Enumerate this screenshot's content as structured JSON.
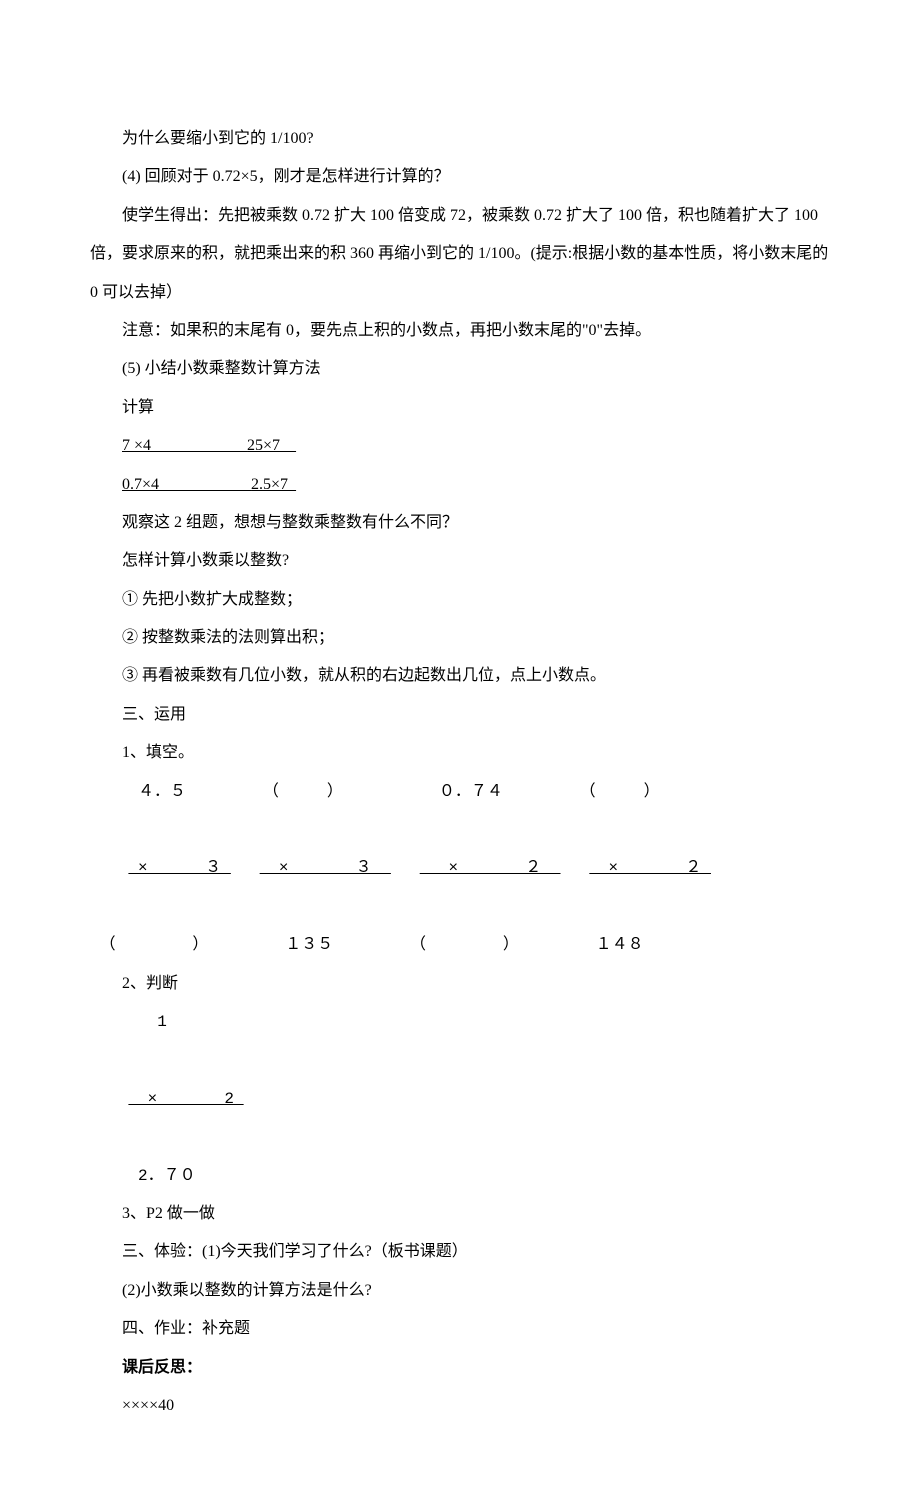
{
  "p1": "为什么要缩小到它的 1/100?",
  "p2": "(4) 回顾对于 0.72×5，刚才是怎样进行计算的？",
  "p3": "使学生得出：先把被乘数 0.72 扩大 100 倍变成 72，被乘数 0.72 扩大了 100 倍，积也随着扩大了 100 倍，要求原来的积，就把乘出来的积 360 再缩小到它的 1/100。(提示:根据小数的基本性质，将小数末尾的 0 可以去掉）",
  "p4": "注意：如果积的末尾有 0，要先点上积的小数点，再把小数末尾的\"0\"去掉。",
  "p5": "(5) 小结小数乘整数计算方法",
  "p6": "计算",
  "p7a": "7 ×4                        ",
  "p7b": "25×7    ",
  "p8a": "0.7×4                       ",
  "p8b": "2.5×7  ",
  "p9": "观察这 2 组题，想想与整数乘整数有什么不同？",
  "p10": "怎样计算小数乘以整数?",
  "p11": "① 先把小数扩大成整数；",
  "p12": "② 按整数乘法的法则算出积；",
  "p13": "③ 再看被乘数有几位小数，就从积的右边起数出几位，点上小数点。",
  "p14": "三、运用",
  "p15": "1、填空。",
  "f1": "     ４．５        （     ）          ０．７４        （     ）",
  "f2a": " ×      ３ ",
  "f2b": "  ×       ３  ",
  "f2c": "   ×       ２  ",
  "f2d": "  ×       ２ ",
  "f3": " （        ）        １３５        （        ）        １４８",
  "p16": "2、判断",
  "p17": "       1",
  "p18": "  ×       2 ",
  "p19": "     2．７０",
  "p20": "3、P2 做一做",
  "p21": "三、体验：(1)今天我们学习了什么?（板书课题）",
  "p22": "(2)小数乘以整数的计算方法是什么?",
  "p23": "四、作业：补充题",
  "p24": "课后反思：",
  "p25": "××××40"
}
